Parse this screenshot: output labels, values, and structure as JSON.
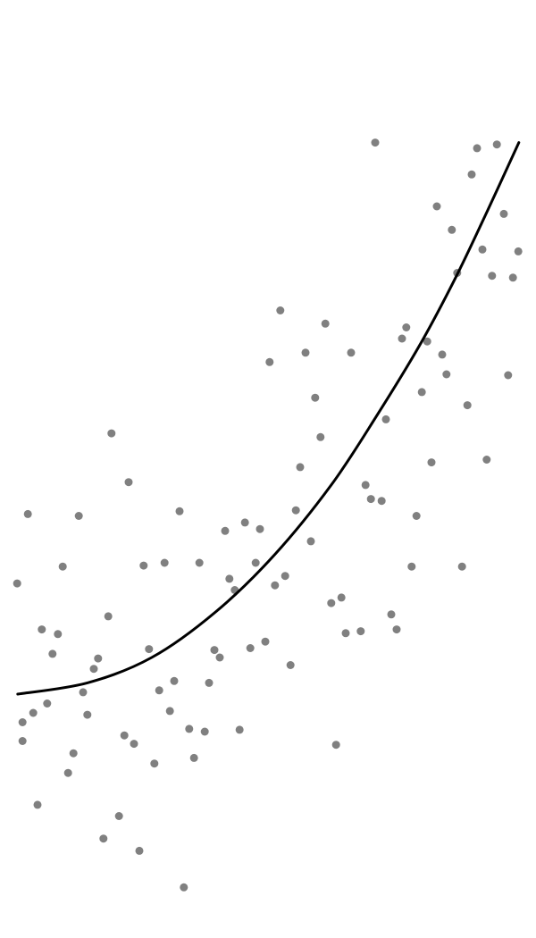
{
  "chart_data": {
    "type": "scatter",
    "grid": false,
    "xlim": [
      0,
      100
    ],
    "ylim": [
      0,
      100
    ],
    "colors": {
      "points": "#808080",
      "trend": "#000000",
      "background": "#ffffff"
    },
    "series": [
      {
        "kind": "points",
        "points": [
          {
            "x": 70.0,
            "y": 84.8
          },
          {
            "x": 89.0,
            "y": 84.2
          },
          {
            "x": 92.7,
            "y": 84.6
          },
          {
            "x": 88.0,
            "y": 81.4
          },
          {
            "x": 81.5,
            "y": 78.0
          },
          {
            "x": 94.0,
            "y": 77.2
          },
          {
            "x": 84.3,
            "y": 75.5
          },
          {
            "x": 90.0,
            "y": 73.4
          },
          {
            "x": 96.7,
            "y": 73.2
          },
          {
            "x": 85.3,
            "y": 70.9
          },
          {
            "x": 91.8,
            "y": 70.6
          },
          {
            "x": 95.7,
            "y": 70.4
          },
          {
            "x": 52.3,
            "y": 66.9
          },
          {
            "x": 60.7,
            "y": 65.5
          },
          {
            "x": 75.8,
            "y": 65.1
          },
          {
            "x": 75.0,
            "y": 63.9
          },
          {
            "x": 79.7,
            "y": 63.6
          },
          {
            "x": 57.0,
            "y": 62.4
          },
          {
            "x": 65.5,
            "y": 62.4
          },
          {
            "x": 82.5,
            "y": 62.2
          },
          {
            "x": 50.3,
            "y": 61.4
          },
          {
            "x": 83.3,
            "y": 60.1
          },
          {
            "x": 94.8,
            "y": 60.0
          },
          {
            "x": 78.7,
            "y": 58.2
          },
          {
            "x": 58.8,
            "y": 57.6
          },
          {
            "x": 87.2,
            "y": 56.8
          },
          {
            "x": 72.0,
            "y": 55.3
          },
          {
            "x": 20.8,
            "y": 53.8
          },
          {
            "x": 59.8,
            "y": 53.4
          },
          {
            "x": 80.5,
            "y": 50.7
          },
          {
            "x": 90.8,
            "y": 51.0
          },
          {
            "x": 56.0,
            "y": 50.2
          },
          {
            "x": 24.0,
            "y": 48.6
          },
          {
            "x": 68.2,
            "y": 48.3
          },
          {
            "x": 69.2,
            "y": 46.8
          },
          {
            "x": 71.2,
            "y": 46.6
          },
          {
            "x": 5.2,
            "y": 45.2
          },
          {
            "x": 14.7,
            "y": 45.0
          },
          {
            "x": 33.5,
            "y": 45.5
          },
          {
            "x": 55.2,
            "y": 45.6
          },
          {
            "x": 77.7,
            "y": 45.0
          },
          {
            "x": 45.7,
            "y": 44.3
          },
          {
            "x": 42.0,
            "y": 43.4
          },
          {
            "x": 48.5,
            "y": 43.6
          },
          {
            "x": 58.0,
            "y": 42.3
          },
          {
            "x": 11.7,
            "y": 39.6
          },
          {
            "x": 26.8,
            "y": 39.7
          },
          {
            "x": 30.7,
            "y": 40.0
          },
          {
            "x": 37.2,
            "y": 40.0
          },
          {
            "x": 47.7,
            "y": 40.0
          },
          {
            "x": 53.2,
            "y": 38.6
          },
          {
            "x": 76.8,
            "y": 39.6
          },
          {
            "x": 86.2,
            "y": 39.6
          },
          {
            "x": 42.8,
            "y": 38.3
          },
          {
            "x": 3.2,
            "y": 37.8
          },
          {
            "x": 43.8,
            "y": 37.1
          },
          {
            "x": 51.3,
            "y": 37.6
          },
          {
            "x": 61.8,
            "y": 35.7
          },
          {
            "x": 63.7,
            "y": 36.3
          },
          {
            "x": 20.2,
            "y": 34.3
          },
          {
            "x": 73.0,
            "y": 34.5
          },
          {
            "x": 7.8,
            "y": 32.9
          },
          {
            "x": 64.5,
            "y": 32.5
          },
          {
            "x": 67.3,
            "y": 32.7
          },
          {
            "x": 74.0,
            "y": 32.9
          },
          {
            "x": 10.8,
            "y": 32.4
          },
          {
            "x": 49.5,
            "y": 31.6
          },
          {
            "x": 27.8,
            "y": 30.8
          },
          {
            "x": 40.0,
            "y": 30.7
          },
          {
            "x": 46.7,
            "y": 30.9
          },
          {
            "x": 9.8,
            "y": 30.3
          },
          {
            "x": 18.3,
            "y": 29.8
          },
          {
            "x": 41.0,
            "y": 29.9
          },
          {
            "x": 17.5,
            "y": 28.7
          },
          {
            "x": 54.2,
            "y": 29.1
          },
          {
            "x": 32.5,
            "y": 27.4
          },
          {
            "x": 39.0,
            "y": 27.2
          },
          {
            "x": 29.7,
            "y": 26.4
          },
          {
            "x": 15.5,
            "y": 26.2
          },
          {
            "x": 8.8,
            "y": 25.0
          },
          {
            "x": 6.2,
            "y": 24.0
          },
          {
            "x": 31.7,
            "y": 24.2
          },
          {
            "x": 16.3,
            "y": 23.8
          },
          {
            "x": 4.2,
            "y": 23.0
          },
          {
            "x": 35.3,
            "y": 22.3
          },
          {
            "x": 38.2,
            "y": 22.0
          },
          {
            "x": 44.7,
            "y": 22.2
          },
          {
            "x": 23.2,
            "y": 21.6
          },
          {
            "x": 4.2,
            "y": 21.0
          },
          {
            "x": 25.0,
            "y": 20.7
          },
          {
            "x": 62.7,
            "y": 20.6
          },
          {
            "x": 13.7,
            "y": 19.7
          },
          {
            "x": 36.2,
            "y": 19.2
          },
          {
            "x": 28.8,
            "y": 18.6
          },
          {
            "x": 12.7,
            "y": 17.6
          },
          {
            "x": 7.0,
            "y": 14.2
          },
          {
            "x": 22.2,
            "y": 13.0
          },
          {
            "x": 19.3,
            "y": 10.6
          },
          {
            "x": 26.0,
            "y": 9.3
          },
          {
            "x": 34.3,
            "y": 5.4
          }
        ]
      },
      {
        "kind": "curve",
        "points": [
          {
            "x": 3.3,
            "y": 26.0
          },
          {
            "x": 16.3,
            "y": 27.2
          },
          {
            "x": 28.3,
            "y": 29.9
          },
          {
            "x": 40.3,
            "y": 34.8
          },
          {
            "x": 51.3,
            "y": 40.9
          },
          {
            "x": 61.8,
            "y": 48.3
          },
          {
            "x": 70.2,
            "y": 55.6
          },
          {
            "x": 78.3,
            "y": 63.2
          },
          {
            "x": 85.0,
            "y": 70.4
          },
          {
            "x": 91.0,
            "y": 77.6
          },
          {
            "x": 96.8,
            "y": 84.8
          }
        ]
      }
    ]
  }
}
